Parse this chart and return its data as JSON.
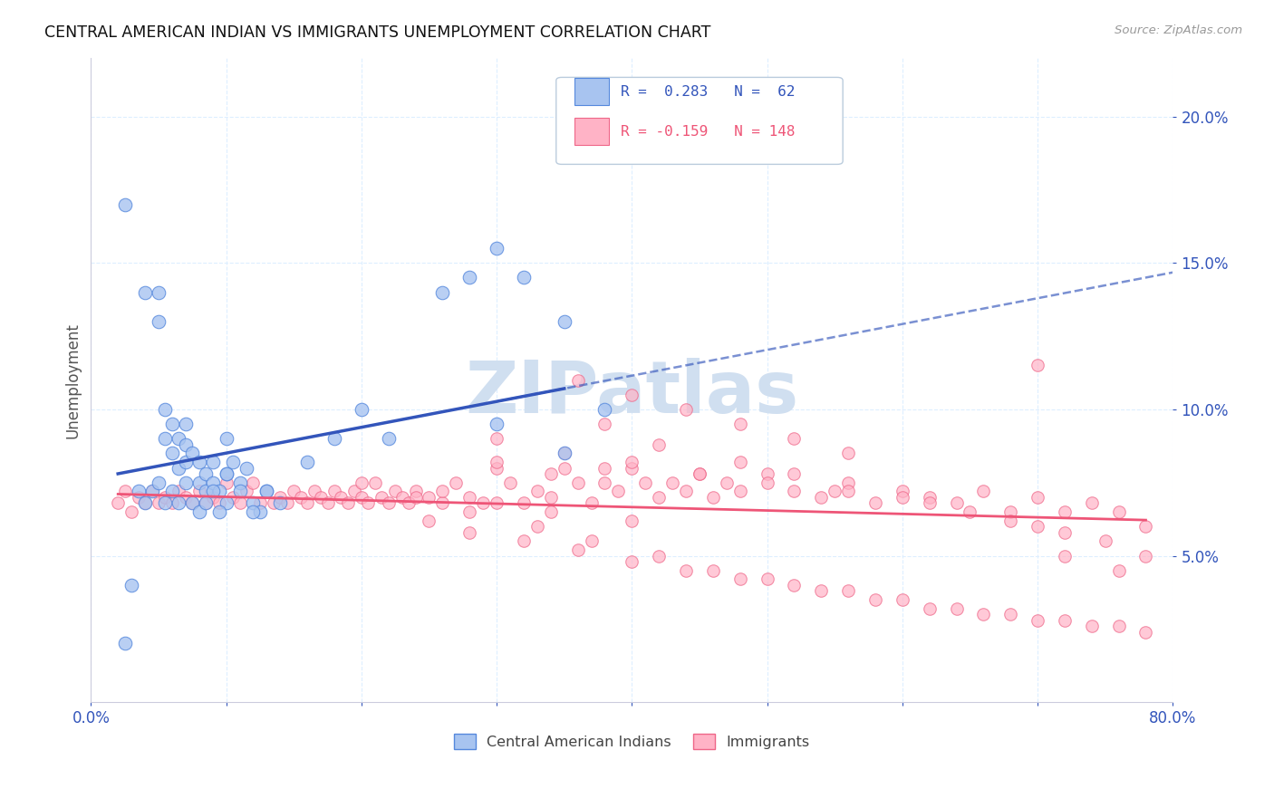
{
  "title": "CENTRAL AMERICAN INDIAN VS IMMIGRANTS UNEMPLOYMENT CORRELATION CHART",
  "source": "Source: ZipAtlas.com",
  "ylabel": "Unemployment",
  "xlim": [
    0.0,
    0.8
  ],
  "ylim": [
    0.0,
    0.22
  ],
  "yticks": [
    0.05,
    0.1,
    0.15,
    0.2
  ],
  "ytick_labels": [
    "5.0%",
    "10.0%",
    "15.0%",
    "20.0%"
  ],
  "xticks": [
    0.0,
    0.1,
    0.2,
    0.3,
    0.4,
    0.5,
    0.6,
    0.7,
    0.8
  ],
  "blue_color": "#A8C4F0",
  "blue_edge_color": "#5588DD",
  "blue_line_color": "#3355BB",
  "pink_color": "#FFB3C6",
  "pink_edge_color": "#EE6688",
  "pink_line_color": "#EE5577",
  "watermark_text": "ZIPatlas",
  "watermark_color": "#D0DFF0",
  "legend_r_blue": "R =  0.283",
  "legend_n_blue": "N =  62",
  "legend_r_pink": "R = -0.159",
  "legend_n_pink": "N = 148",
  "legend_label_blue": "Central American Indians",
  "legend_label_pink": "Immigrants",
  "blue_scatter_x": [
    0.025,
    0.04,
    0.05,
    0.05,
    0.055,
    0.055,
    0.06,
    0.06,
    0.065,
    0.065,
    0.07,
    0.07,
    0.07,
    0.075,
    0.08,
    0.08,
    0.085,
    0.085,
    0.09,
    0.09,
    0.095,
    0.1,
    0.1,
    0.1,
    0.105,
    0.11,
    0.115,
    0.12,
    0.125,
    0.13,
    0.035,
    0.04,
    0.045,
    0.05,
    0.055,
    0.06,
    0.065,
    0.07,
    0.075,
    0.08,
    0.085,
    0.09,
    0.095,
    0.1,
    0.11,
    0.12,
    0.13,
    0.14,
    0.16,
    0.18,
    0.2,
    0.22,
    0.26,
    0.28,
    0.3,
    0.32,
    0.35,
    0.38,
    0.3,
    0.35,
    0.025,
    0.03
  ],
  "blue_scatter_y": [
    0.17,
    0.14,
    0.13,
    0.14,
    0.1,
    0.09,
    0.095,
    0.085,
    0.09,
    0.08,
    0.095,
    0.088,
    0.082,
    0.085,
    0.075,
    0.082,
    0.078,
    0.072,
    0.082,
    0.075,
    0.072,
    0.09,
    0.078,
    0.068,
    0.082,
    0.075,
    0.08,
    0.068,
    0.065,
    0.072,
    0.072,
    0.068,
    0.072,
    0.075,
    0.068,
    0.072,
    0.068,
    0.075,
    0.068,
    0.065,
    0.068,
    0.072,
    0.065,
    0.078,
    0.072,
    0.065,
    0.072,
    0.068,
    0.082,
    0.09,
    0.1,
    0.09,
    0.14,
    0.145,
    0.155,
    0.145,
    0.13,
    0.1,
    0.095,
    0.085,
    0.02,
    0.04
  ],
  "pink_scatter_x": [
    0.02,
    0.025,
    0.03,
    0.035,
    0.04,
    0.045,
    0.05,
    0.055,
    0.06,
    0.065,
    0.07,
    0.075,
    0.08,
    0.085,
    0.09,
    0.095,
    0.1,
    0.105,
    0.11,
    0.115,
    0.12,
    0.125,
    0.13,
    0.135,
    0.14,
    0.145,
    0.15,
    0.155,
    0.16,
    0.165,
    0.17,
    0.175,
    0.18,
    0.185,
    0.19,
    0.195,
    0.2,
    0.205,
    0.21,
    0.215,
    0.22,
    0.225,
    0.23,
    0.235,
    0.24,
    0.25,
    0.26,
    0.27,
    0.28,
    0.29,
    0.3,
    0.31,
    0.32,
    0.33,
    0.34,
    0.35,
    0.36,
    0.37,
    0.38,
    0.39,
    0.4,
    0.41,
    0.42,
    0.43,
    0.44,
    0.45,
    0.46,
    0.47,
    0.48,
    0.5,
    0.52,
    0.54,
    0.56,
    0.58,
    0.6,
    0.62,
    0.64,
    0.66,
    0.68,
    0.7,
    0.72,
    0.74,
    0.76,
    0.78,
    0.3,
    0.35,
    0.4,
    0.45,
    0.5,
    0.55,
    0.6,
    0.65,
    0.7,
    0.38,
    0.42,
    0.48,
    0.52,
    0.56,
    0.62,
    0.68,
    0.72,
    0.75,
    0.78,
    0.25,
    0.28,
    0.32,
    0.36,
    0.4,
    0.44,
    0.48,
    0.52,
    0.56,
    0.6,
    0.64,
    0.68,
    0.72,
    0.76,
    0.2,
    0.24,
    0.28,
    0.33,
    0.37,
    0.42,
    0.46,
    0.5,
    0.54,
    0.58,
    0.62,
    0.66,
    0.7,
    0.74,
    0.78,
    0.36,
    0.4,
    0.44,
    0.48,
    0.52,
    0.56,
    0.3,
    0.34,
    0.38,
    0.26,
    0.3,
    0.34,
    0.4,
    0.7,
    0.72,
    0.76
  ],
  "pink_scatter_y": [
    0.068,
    0.072,
    0.065,
    0.07,
    0.068,
    0.072,
    0.068,
    0.07,
    0.068,
    0.072,
    0.07,
    0.068,
    0.072,
    0.068,
    0.07,
    0.068,
    0.075,
    0.07,
    0.068,
    0.072,
    0.075,
    0.068,
    0.072,
    0.068,
    0.07,
    0.068,
    0.072,
    0.07,
    0.068,
    0.072,
    0.07,
    0.068,
    0.072,
    0.07,
    0.068,
    0.072,
    0.07,
    0.068,
    0.075,
    0.07,
    0.068,
    0.072,
    0.07,
    0.068,
    0.072,
    0.07,
    0.068,
    0.075,
    0.07,
    0.068,
    0.08,
    0.075,
    0.068,
    0.072,
    0.07,
    0.08,
    0.075,
    0.068,
    0.08,
    0.072,
    0.08,
    0.075,
    0.07,
    0.075,
    0.072,
    0.078,
    0.07,
    0.075,
    0.072,
    0.078,
    0.072,
    0.07,
    0.075,
    0.068,
    0.072,
    0.07,
    0.068,
    0.072,
    0.065,
    0.07,
    0.065,
    0.068,
    0.065,
    0.06,
    0.09,
    0.085,
    0.082,
    0.078,
    0.075,
    0.072,
    0.07,
    0.065,
    0.06,
    0.095,
    0.088,
    0.082,
    0.078,
    0.072,
    0.068,
    0.062,
    0.058,
    0.055,
    0.05,
    0.062,
    0.058,
    0.055,
    0.052,
    0.048,
    0.045,
    0.042,
    0.04,
    0.038,
    0.035,
    0.032,
    0.03,
    0.028,
    0.026,
    0.075,
    0.07,
    0.065,
    0.06,
    0.055,
    0.05,
    0.045,
    0.042,
    0.038,
    0.035,
    0.032,
    0.03,
    0.028,
    0.026,
    0.024,
    0.11,
    0.105,
    0.1,
    0.095,
    0.09,
    0.085,
    0.082,
    0.078,
    0.075,
    0.072,
    0.068,
    0.065,
    0.062,
    0.115,
    0.05,
    0.045
  ]
}
